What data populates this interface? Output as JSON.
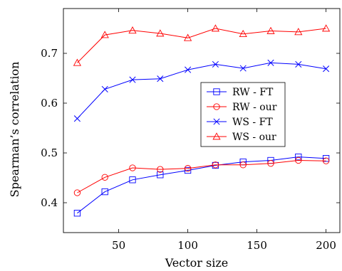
{
  "chart_data": {
    "type": "line",
    "title": "",
    "xlabel": "Vector size",
    "ylabel": "Spearman’s correlation",
    "xlim": [
      10,
      210
    ],
    "ylim": [
      0.34,
      0.79
    ],
    "xticks": [
      50,
      100,
      150,
      200
    ],
    "yticks": [
      0.4,
      0.5,
      0.6,
      0.7
    ],
    "xtick_labels": [
      "50",
      "100",
      "150",
      "200"
    ],
    "ytick_labels": [
      "0.4",
      "0.5",
      "0.6",
      "0.7"
    ],
    "grid": false,
    "legend_position": "center-right",
    "x": [
      20,
      40,
      60,
      80,
      100,
      120,
      140,
      160,
      180,
      200
    ],
    "series": [
      {
        "name": "RW - FT",
        "color": "#0000ff",
        "marker": "square",
        "values": [
          0.379,
          0.422,
          0.446,
          0.456,
          0.465,
          0.475,
          0.482,
          0.485,
          0.492,
          0.489
        ]
      },
      {
        "name": "RW - our",
        "color": "#ff0000",
        "marker": "circle",
        "values": [
          0.42,
          0.451,
          0.47,
          0.467,
          0.469,
          0.476,
          0.476,
          0.479,
          0.485,
          0.484
        ]
      },
      {
        "name": "WS - FT",
        "color": "#0000ff",
        "marker": "cross",
        "values": [
          0.569,
          0.628,
          0.647,
          0.649,
          0.667,
          0.678,
          0.67,
          0.681,
          0.678,
          0.669
        ]
      },
      {
        "name": "WS - our",
        "color": "#ff0000",
        "marker": "triangle",
        "values": [
          0.681,
          0.737,
          0.746,
          0.74,
          0.731,
          0.75,
          0.739,
          0.745,
          0.743,
          0.75
        ]
      }
    ]
  }
}
